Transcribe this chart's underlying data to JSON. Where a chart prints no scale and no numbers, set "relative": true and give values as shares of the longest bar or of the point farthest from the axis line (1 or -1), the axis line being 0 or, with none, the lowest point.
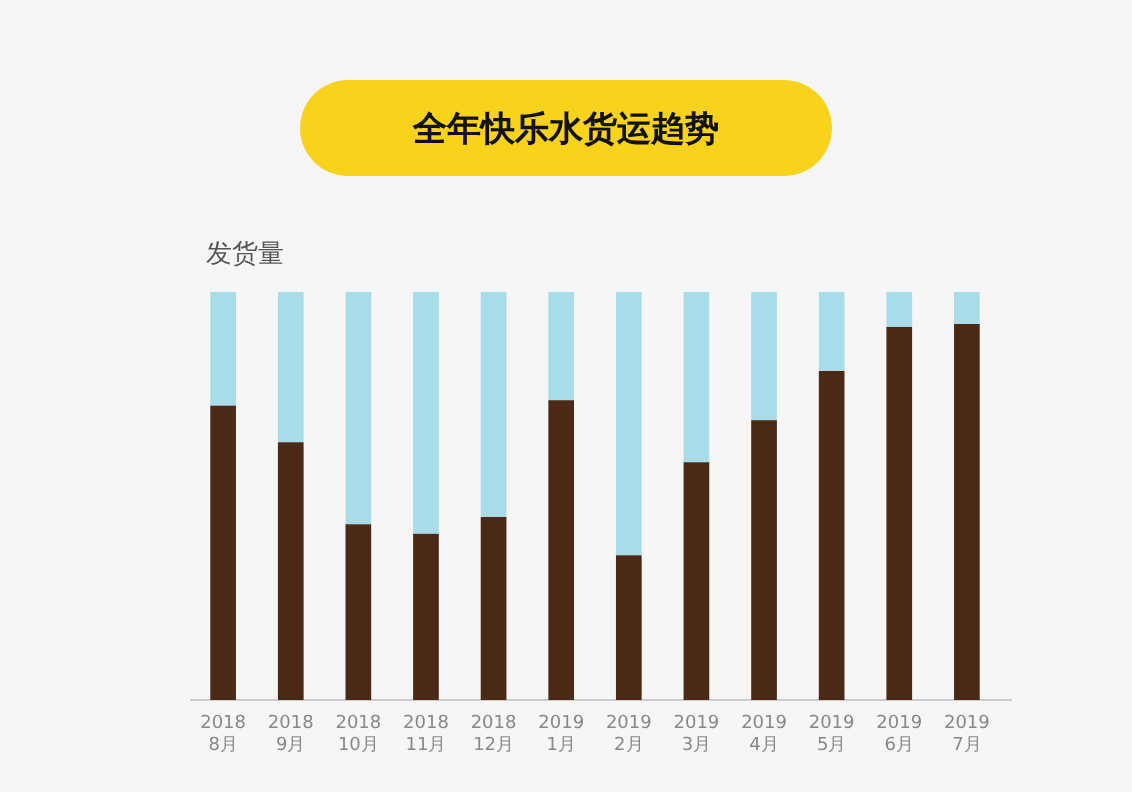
{
  "chart_data": {
    "type": "bar",
    "title": "全年快乐水货运趋势",
    "ylabel": "发货量",
    "relative": true,
    "stacked": true,
    "categories": [
      "2018\n8月",
      "2018\n9月",
      "2018\n10月",
      "2018\n11月",
      "2018\n12月",
      "2019\n1月",
      "2019\n2月",
      "2019\n3月",
      "2019\n4月",
      "2019\n5月",
      "2019\n6月",
      "2019\n7月"
    ],
    "series": [
      {
        "color": "#4a2a17",
        "values": [
          0.722,
          0.632,
          0.431,
          0.408,
          0.449,
          0.735,
          0.355,
          0.583,
          0.686,
          0.807,
          0.915,
          0.922
        ]
      },
      {
        "color": "#a8dce8",
        "values": [
          0.278,
          0.368,
          0.569,
          0.592,
          0.551,
          0.265,
          0.645,
          0.417,
          0.314,
          0.193,
          0.085,
          0.078
        ]
      }
    ]
  }
}
